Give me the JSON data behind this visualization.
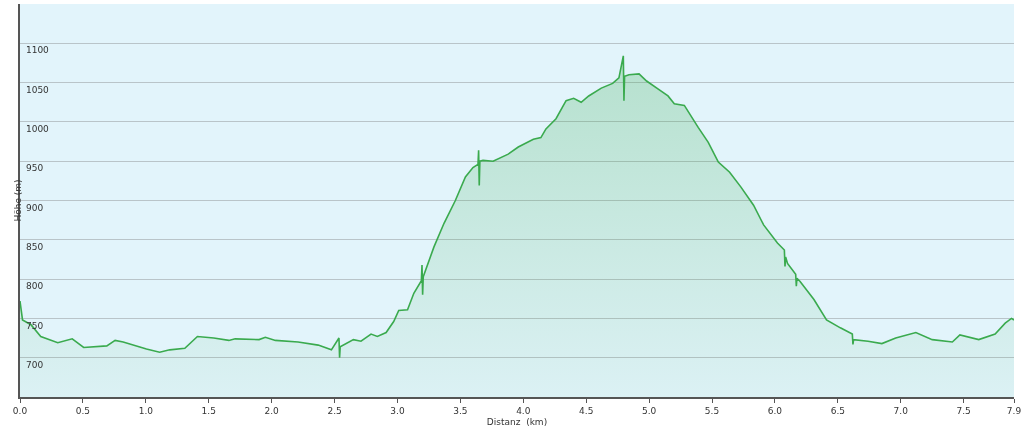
{
  "chart_data": {
    "type": "area",
    "xlabel": "Distanz  (km)",
    "ylabel": "Höhe (m)",
    "color": "#3aaa4e",
    "x": [
      0,
      0.02,
      0.087,
      0.165,
      0.3,
      0.415,
      0.506,
      0.69,
      0.756,
      0.82,
      1.005,
      1.11,
      1.19,
      1.31,
      1.41,
      1.54,
      1.66,
      1.71,
      1.9,
      1.95,
      2.03,
      2.21,
      2.37,
      2.475,
      2.535,
      2.54,
      2.545,
      2.65,
      2.71,
      2.79,
      2.84,
      2.91,
      2.97,
      3.01,
      3.08,
      3.13,
      3.19,
      3.195,
      3.2,
      3.205,
      3.29,
      3.37,
      3.46,
      3.54,
      3.6,
      3.64,
      3.645,
      3.65,
      3.655,
      3.68,
      3.76,
      3.88,
      3.96,
      4.08,
      4.14,
      4.18,
      4.26,
      4.34,
      4.4,
      4.46,
      4.52,
      4.62,
      4.71,
      4.76,
      4.795,
      4.8,
      4.805,
      4.84,
      4.92,
      4.98,
      5.07,
      5.15,
      5.2,
      5.28,
      5.39,
      5.47,
      5.55,
      5.64,
      5.73,
      5.83,
      5.91,
      6.02,
      6.075,
      6.08,
      6.085,
      6.1,
      6.165,
      6.17,
      6.175,
      6.2,
      6.31,
      6.41,
      6.52,
      6.615,
      6.62,
      6.625,
      6.74,
      6.85,
      6.96,
      7.12,
      7.25,
      7.41,
      7.47,
      7.62,
      7.75,
      7.83,
      7.88,
      7.9
    ],
    "values": [
      772,
      748,
      742,
      727,
      719,
      724,
      713,
      715,
      722,
      720,
      711,
      707,
      710,
      712,
      727,
      725,
      722,
      724,
      723,
      726,
      722,
      720,
      716,
      710,
      725,
      700,
      714,
      723,
      721,
      730,
      727,
      732,
      746,
      760,
      761,
      782,
      798,
      818,
      780,
      803,
      841,
      871,
      900,
      930,
      942,
      946,
      964,
      919,
      950,
      951,
      950,
      959,
      968,
      978,
      980,
      991,
      1004,
      1027,
      1030,
      1025,
      1033,
      1043,
      1049,
      1056,
      1084,
      1027,
      1058,
      1060,
      1061,
      1052,
      1042,
      1033,
      1023,
      1021,
      993,
      974,
      949,
      936,
      917,
      894,
      869,
      846,
      837,
      816,
      828,
      820,
      806,
      791,
      801,
      797,
      774,
      748,
      738,
      730,
      717,
      723,
      721,
      718,
      725,
      732,
      723,
      720,
      729,
      723,
      730,
      744,
      750,
      748
    ],
    "xlim": [
      0,
      7.9
    ],
    "xticks": [
      {
        "value": 0,
        "label": "0.0"
      },
      0.5,
      {
        "value": 1,
        "label": "1.0"
      },
      1.5,
      {
        "value": 2,
        "label": "2.0"
      },
      2.5,
      {
        "value": 3,
        "label": "3.0"
      },
      3.5,
      {
        "value": 4,
        "label": "4.0"
      },
      4.5,
      {
        "value": 5,
        "label": "5.0"
      },
      5.5,
      {
        "value": 6,
        "label": "6.0"
      },
      6.5,
      {
        "value": 7,
        "label": "7.0"
      },
      7.5,
      7.9
    ],
    "ylim": [
      650,
      1150
    ],
    "yticks": [
      700,
      750,
      800,
      850,
      900,
      950,
      1000,
      1050,
      1100
    ],
    "grid": "y"
  }
}
